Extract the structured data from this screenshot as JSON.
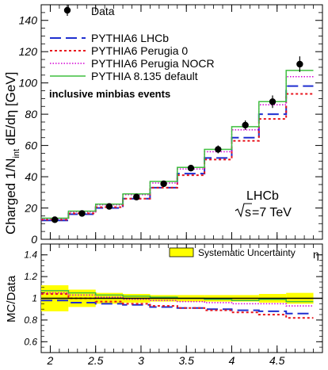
{
  "chart_data": [
    {
      "type": "line",
      "xlim": [
        1.9,
        5.0
      ],
      "ylim": [
        0,
        150
      ],
      "yticks": [
        0,
        20,
        40,
        60,
        80,
        100,
        120,
        140
      ],
      "ylabel_parts": {
        "main": "Charged 1/N",
        "sub": "int",
        "rest": " dE/dη [GeV]"
      },
      "bin_edges": [
        1.9,
        2.2,
        2.5,
        2.8,
        3.1,
        3.4,
        3.7,
        4.0,
        4.3,
        4.6,
        4.9
      ],
      "data": {
        "name": "Data",
        "x": [
          2.05,
          2.35,
          2.65,
          2.95,
          3.25,
          3.55,
          3.85,
          4.15,
          4.45,
          4.75
        ],
        "y": [
          12.5,
          16.5,
          21,
          27,
          35.5,
          45.5,
          57.5,
          73,
          88,
          112
        ],
        "yerr": [
          1.0,
          1.0,
          1.2,
          1.5,
          1.8,
          2.0,
          2.5,
          3.0,
          4.0,
          5.0
        ]
      },
      "series": [
        {
          "name": "PYTHIA6 LHCb",
          "color": "#1f2fd0",
          "dash": "14,6",
          "width": 2,
          "values": [
            12,
            16,
            20,
            26,
            33,
            42,
            52,
            65,
            80,
            98
          ]
        },
        {
          "name": "PYTHIA6 Perugia 0",
          "color": "#e8141c",
          "dash": "3,3",
          "width": 2,
          "values": [
            12.5,
            16.5,
            20.5,
            26,
            33,
            41,
            51,
            63,
            77,
            93
          ]
        },
        {
          "name": "PYTHIA6 Perugia NOCR",
          "color": "#d400d4",
          "dash": "1.5,2",
          "width": 1.5,
          "values": [
            13,
            17.5,
            22,
            28.5,
            36,
            45,
            56,
            70,
            86,
            104
          ]
        },
        {
          "name": "PYTHIA 8.135 default",
          "color": "#3fbf3f",
          "dash": "",
          "width": 1.5,
          "values": [
            13.5,
            18,
            22.5,
            29,
            37,
            46,
            57.5,
            72,
            88,
            108
          ]
        }
      ],
      "annotations": {
        "sample": "inclusive minbias events",
        "experiment": "LHCb",
        "energy_root": "s",
        "energy_rest": "=7 TeV"
      }
    },
    {
      "type": "line",
      "xlim": [
        1.9,
        5.0
      ],
      "ylim": [
        0.5,
        1.5
      ],
      "yticks": [
        0.6,
        0.8,
        1,
        1.2,
        1.4
      ],
      "ylabel": "MC/Data",
      "xlabel": "η",
      "xticks": [
        2,
        2.5,
        3,
        3.5,
        4,
        4.5
      ],
      "legend": [
        "Systematic Uncertainty"
      ],
      "band": {
        "color": "#ffff00",
        "low": [
          0.88,
          0.92,
          0.95,
          0.96,
          0.97,
          0.97,
          0.97,
          0.97,
          0.96,
          0.95
        ],
        "high": [
          1.12,
          1.08,
          1.05,
          1.04,
          1.03,
          1.03,
          1.03,
          1.03,
          1.04,
          1.05
        ]
      },
      "series": [
        {
          "name": "PYTHIA6 LHCb",
          "values": [
            0.98,
            0.96,
            0.95,
            0.94,
            0.92,
            0.91,
            0.9,
            0.89,
            0.88,
            0.86
          ]
        },
        {
          "name": "PYTHIA6 Perugia 0",
          "values": [
            1.04,
            1.0,
            0.97,
            0.95,
            0.93,
            0.91,
            0.89,
            0.87,
            0.85,
            0.82
          ]
        },
        {
          "name": "PYTHIA6 Perugia NOCR",
          "values": [
            1.05,
            1.03,
            1.01,
            0.99,
            0.98,
            0.97,
            0.96,
            0.95,
            0.95,
            0.93
          ]
        },
        {
          "name": "PYTHIA 8.135 default",
          "values": [
            1.07,
            1.05,
            1.03,
            1.02,
            1.01,
            1.0,
            0.99,
            0.98,
            0.99,
            0.97
          ]
        }
      ]
    }
  ]
}
